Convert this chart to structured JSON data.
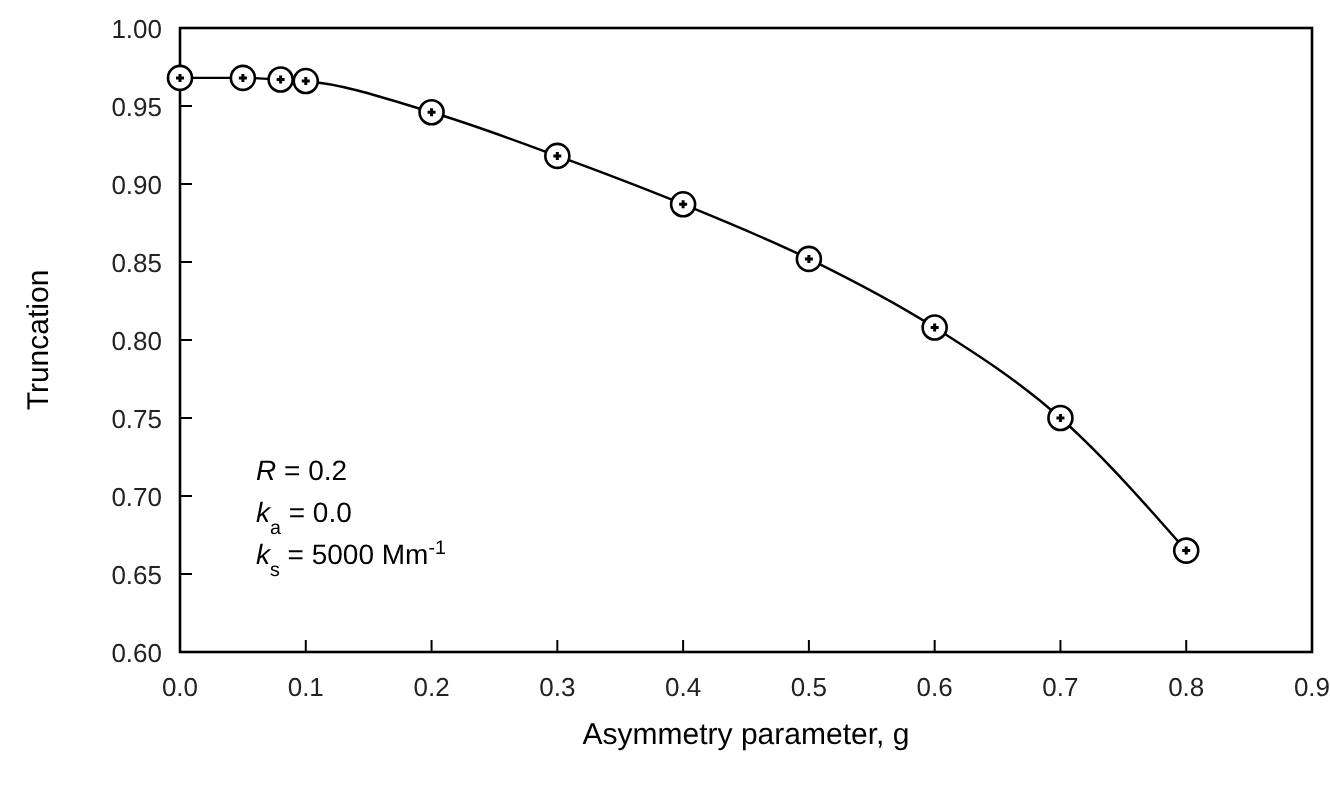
{
  "chart_data": {
    "type": "line",
    "xlabel": "Asymmetry parameter, g",
    "ylabel": "Truncation",
    "x": [
      0,
      0.05,
      0.08,
      0.1,
      0.2,
      0.3,
      0.4,
      0.5,
      0.6,
      0.7,
      0.8
    ],
    "series": [
      {
        "color": "#000000",
        "values": [
          0.968,
          0.968,
          0.967,
          0.966,
          0.946,
          0.918,
          0.887,
          0.852,
          0.808,
          0.75,
          0.665
        ]
      }
    ],
    "xlim": [
      0,
      0.9
    ],
    "xticks": [
      {
        "value": 0,
        "label": "0.0"
      },
      0.1,
      0.2,
      0.3,
      0.4,
      0.5,
      0.6,
      0.7,
      0.8,
      0.9
    ],
    "ylim": [
      0.6,
      1.0
    ],
    "yticks": [
      {
        "value": 0.6,
        "label": "0.60"
      },
      {
        "value": 0.65,
        "label": "0.65"
      },
      {
        "value": 0.7,
        "label": "0.70"
      },
      {
        "value": 0.75,
        "label": "0.75"
      },
      {
        "value": 0.8,
        "label": "0.80"
      },
      {
        "value": 0.85,
        "label": "0.85"
      },
      {
        "value": 0.9,
        "label": "0.90"
      },
      {
        "value": 0.95,
        "label": "0.95"
      },
      {
        "value": 1.0,
        "label": "1.00"
      }
    ],
    "annotations": [
      "R = 0.2",
      "k$_{a}$ = 0.0",
      "k$_{s}$ = 5000 Mm$^{-1}$"
    ],
    "grid": false,
    "marker": "circle",
    "line_style": "solid"
  }
}
